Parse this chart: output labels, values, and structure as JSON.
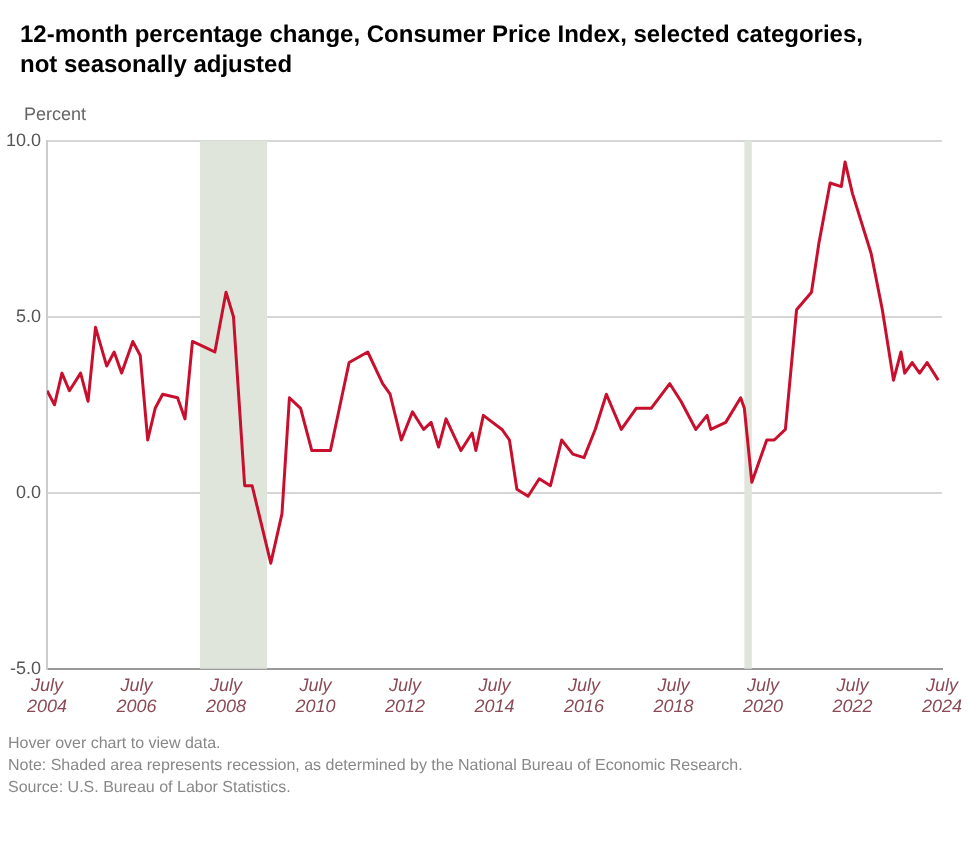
{
  "chart_data": {
    "type": "line",
    "title": "12-month percentage change, Consumer Price Index, selected categories, not seasonally adjusted",
    "ylabel": "Percent",
    "x": [
      "2004-07",
      "2004-09",
      "2004-11",
      "2005-01",
      "2005-04",
      "2005-06",
      "2005-08",
      "2005-11",
      "2006-01",
      "2006-03",
      "2006-06",
      "2006-08",
      "2006-10",
      "2006-12",
      "2007-02",
      "2007-06",
      "2007-08",
      "2007-10",
      "2008-02",
      "2008-04",
      "2008-07",
      "2008-09",
      "2008-12",
      "2009-02",
      "2009-07",
      "2009-10",
      "2009-12",
      "2010-03",
      "2010-06",
      "2010-11",
      "2011-04",
      "2011-09",
      "2012-01",
      "2012-03",
      "2012-06",
      "2012-09",
      "2012-12",
      "2013-02",
      "2013-04",
      "2013-06",
      "2013-10",
      "2014-01",
      "2014-02",
      "2014-04",
      "2014-09",
      "2014-11",
      "2015-01",
      "2015-04",
      "2015-07",
      "2015-10",
      "2016-01",
      "2016-04",
      "2016-07",
      "2016-10",
      "2017-01",
      "2017-05",
      "2017-09",
      "2018-01",
      "2018-06",
      "2018-09",
      "2019-01",
      "2019-04",
      "2019-05",
      "2019-09",
      "2020-01",
      "2020-02",
      "2020-04",
      "2020-08",
      "2020-10",
      "2021-01",
      "2021-04",
      "2021-08",
      "2021-10",
      "2022-01",
      "2022-04",
      "2022-05",
      "2022-07",
      "2022-12",
      "2023-03",
      "2023-06",
      "2023-08",
      "2023-09",
      "2023-11",
      "2024-01",
      "2024-03",
      "2024-06"
    ],
    "series": [
      {
        "color": "#c8102e",
        "values": [
          2.9,
          2.5,
          3.4,
          2.9,
          3.4,
          2.6,
          4.7,
          3.6,
          4.0,
          3.4,
          4.3,
          3.9,
          1.5,
          2.4,
          2.8,
          2.7,
          2.1,
          4.3,
          4.1,
          4.0,
          5.7,
          5.0,
          0.2,
          0.2,
          -2.0,
          -0.6,
          2.7,
          2.4,
          1.2,
          1.2,
          3.7,
          4.0,
          3.1,
          2.8,
          1.5,
          2.3,
          1.8,
          2.0,
          1.3,
          2.1,
          1.2,
          1.7,
          1.2,
          2.2,
          1.8,
          1.5,
          0.1,
          -0.1,
          0.4,
          0.2,
          1.5,
          1.1,
          1.0,
          1.8,
          2.8,
          1.8,
          2.4,
          2.4,
          3.1,
          2.6,
          1.8,
          2.2,
          1.8,
          2.0,
          2.7,
          2.4,
          0.3,
          1.5,
          1.5,
          1.8,
          5.2,
          5.7,
          7.1,
          8.8,
          8.7,
          9.4,
          8.5,
          6.8,
          5.2,
          3.2,
          4.0,
          3.4,
          3.7,
          3.4,
          3.7,
          3.2
        ]
      }
    ],
    "xlim": [
      "2004-07",
      "2024-07"
    ],
    "xticks": [
      {
        "value": "2004-07",
        "label": "July 2004"
      },
      {
        "value": "2006-07",
        "label": "July 2006"
      },
      {
        "value": "2008-07",
        "label": "July 2008"
      },
      {
        "value": "2010-07",
        "label": "July 2010"
      },
      {
        "value": "2012-07",
        "label": "July 2012"
      },
      {
        "value": "2014-07",
        "label": "July 2014"
      },
      {
        "value": "2016-07",
        "label": "July 2016"
      },
      {
        "value": "2018-07",
        "label": "July 2018"
      },
      {
        "value": "2020-07",
        "label": "July 2020"
      },
      {
        "value": "2022-07",
        "label": "July 2022"
      },
      {
        "value": "2024-07",
        "label": "July 2024"
      }
    ],
    "ylim": [
      -5,
      10
    ],
    "yticks": [
      {
        "value": -5,
        "label": "-5.0"
      },
      {
        "value": 0,
        "label": "0.0"
      },
      {
        "value": 5,
        "label": "5.0"
      },
      {
        "value": 10,
        "label": "10.0"
      }
    ],
    "bands": [
      {
        "axis": "x",
        "from": "2007-12",
        "to": "2009-06",
        "color": "#dfe5da"
      },
      {
        "axis": "x",
        "from": "2020-02",
        "to": "2020-04",
        "color": "#dfe5da"
      }
    ],
    "grid": "y",
    "legend": false,
    "marker": "none",
    "line_style": "solid",
    "annotations": [
      "Hover over chart to view data.",
      "Note: Shaded area represents recession, as determined by the National Bureau of Economic Research.",
      "Source: U.S. Bureau of Labor Statistics."
    ]
  }
}
